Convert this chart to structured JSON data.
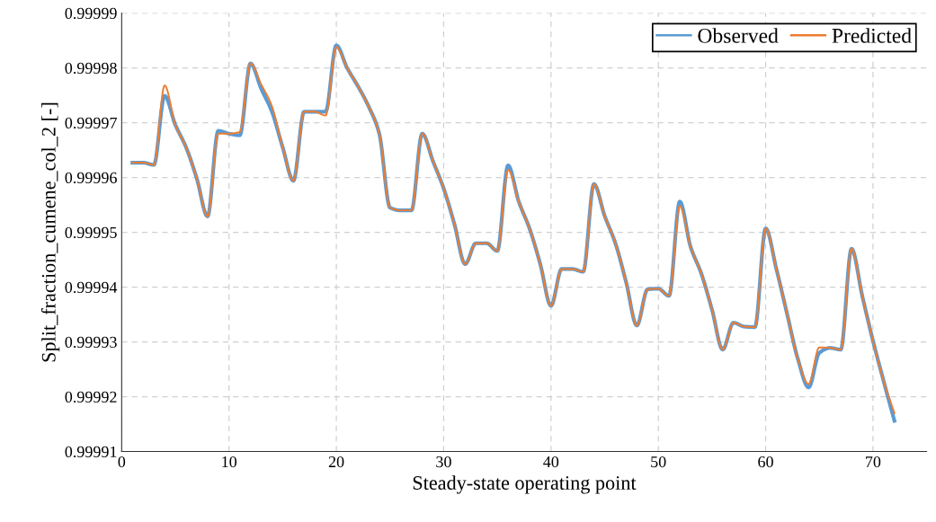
{
  "chart_data": {
    "type": "line",
    "xlabel": "Steady-state operating point",
    "ylabel": "Split_fraction_cumene_col_2 [-]",
    "x": [
      1,
      2,
      3,
      4,
      5,
      6,
      7,
      8,
      9,
      10,
      11,
      12,
      13,
      14,
      15,
      16,
      17,
      18,
      19,
      20,
      21,
      22,
      23,
      24,
      25,
      26,
      27,
      28,
      29,
      30,
      31,
      32,
      33,
      34,
      35,
      36,
      37,
      38,
      39,
      40,
      41,
      42,
      43,
      44,
      45,
      46,
      47,
      48,
      49,
      50,
      51,
      52,
      53,
      54,
      55,
      56,
      57,
      58,
      59,
      60,
      61,
      62,
      63,
      64,
      65,
      66,
      67,
      68,
      69,
      70,
      71,
      72
    ],
    "series": [
      {
        "name": "Observed",
        "color": "#5b9bd5",
        "values": [
          0.9999627,
          0.9999627,
          0.9999623,
          0.9999749,
          0.9999696,
          0.9999655,
          0.9999598,
          0.9999529,
          0.9999685,
          0.999968,
          0.9999677,
          0.9999808,
          0.9999762,
          0.999972,
          0.9999655,
          0.9999594,
          0.999972,
          0.999972,
          0.999972,
          0.9999841,
          0.99998,
          0.9999767,
          0.999973,
          0.999968,
          0.9999545,
          0.999954,
          0.999954,
          0.999968,
          0.999963,
          0.999958,
          0.9999515,
          0.9999442,
          0.999948,
          0.999948,
          0.9999466,
          0.9999622,
          0.9999556,
          0.9999507,
          0.9999442,
          0.9999366,
          0.9999433,
          0.9999433,
          0.9999428,
          0.9999588,
          0.999953,
          0.999948,
          0.9999409,
          0.999933,
          0.9999396,
          0.9999397,
          0.9999384,
          0.9999556,
          0.9999474,
          0.9999425,
          0.9999359,
          0.9999286,
          0.9999335,
          0.9999328,
          0.9999327,
          0.9999507,
          0.9999433,
          0.9999351,
          0.9999269,
          0.9999217,
          0.999928,
          0.9999289,
          0.9999286,
          0.999947,
          0.9999384,
          0.9999302,
          0.9999228,
          0.9999156
        ]
      },
      {
        "name": "Predicted",
        "color": "#ed7d31",
        "values": [
          0.9999627,
          0.9999627,
          0.9999623,
          0.9999768,
          0.9999696,
          0.9999655,
          0.9999598,
          0.9999529,
          0.999968,
          0.999968,
          0.9999683,
          0.9999808,
          0.999977,
          0.999973,
          0.9999655,
          0.9999594,
          0.999972,
          0.999972,
          0.9999713,
          0.9999838,
          0.99998,
          0.9999767,
          0.999973,
          0.999968,
          0.9999545,
          0.999954,
          0.999954,
          0.999968,
          0.999963,
          0.999958,
          0.9999515,
          0.9999442,
          0.999948,
          0.999948,
          0.9999466,
          0.9999614,
          0.9999556,
          0.9999507,
          0.9999442,
          0.9999366,
          0.9999433,
          0.9999433,
          0.9999428,
          0.9999588,
          0.999953,
          0.999948,
          0.9999409,
          0.999933,
          0.9999396,
          0.9999397,
          0.9999384,
          0.9999548,
          0.9999474,
          0.9999425,
          0.9999359,
          0.9999286,
          0.9999335,
          0.9999328,
          0.9999327,
          0.9999507,
          0.9999433,
          0.9999351,
          0.9999269,
          0.9999223,
          0.999929,
          0.9999289,
          0.9999286,
          0.999947,
          0.9999384,
          0.9999302,
          0.9999228,
          0.999917
        ]
      }
    ],
    "xlim": [
      0,
      75
    ],
    "xticks": [
      0,
      10,
      20,
      30,
      40,
      50,
      60,
      70
    ],
    "ylim": [
      0.99991,
      0.99999
    ],
    "yticks": [
      0.99991,
      0.99992,
      0.99993,
      0.99994,
      0.99995,
      0.99996,
      0.99997,
      0.99998,
      0.99999
    ],
    "grid": true,
    "legend": "top right",
    "marker": "none",
    "line_style": "solid"
  }
}
